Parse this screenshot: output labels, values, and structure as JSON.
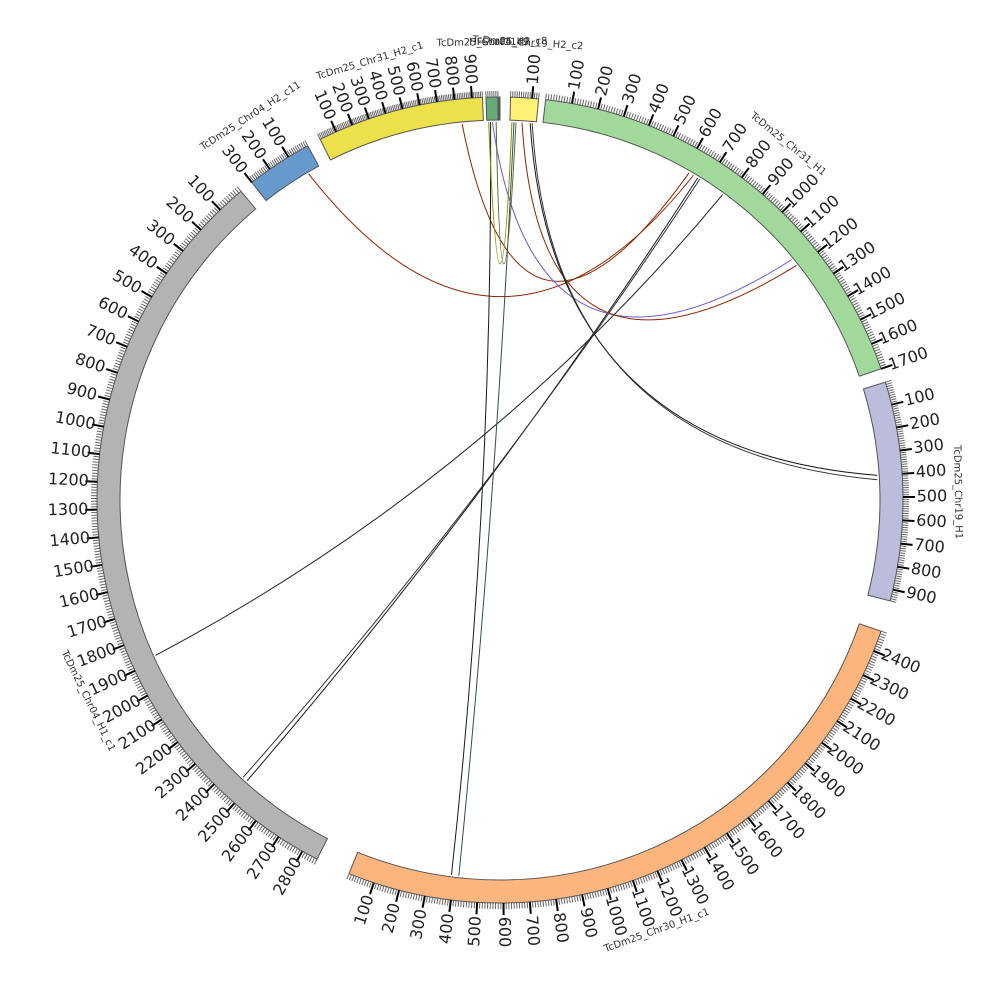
{
  "chromosomes": [
    {
      "name": "TcDm25_Chr19_H1",
      "color": "#bcbddc",
      "max": 950,
      "start_deg": 73.0,
      "end_deg": 104.5,
      "label_deg": 89.0,
      "dir": 1
    },
    {
      "name": "TcDm25_Chr30_H1_c1",
      "color": "#fdb57e",
      "max": 2480,
      "start_deg": 109.0,
      "end_deg": 202.0,
      "label_deg": 160.0,
      "dir": -1
    },
    {
      "name": "TcDm25_Chr04_H1_c1",
      "color": "#b3b3b3",
      "max": 2860,
      "start_deg": 207.0,
      "end_deg": 320.0,
      "label_deg": 244.0,
      "dir": -1
    },
    {
      "name": "TcDm25_Chr04_H2_c11",
      "color": "#6699cc",
      "max": 300,
      "start_deg": 322.0,
      "end_deg": 331.5,
      "label_deg": 327.0,
      "dir": -1
    },
    {
      "name": "TcDm25_Chr31_H2_c1",
      "color": "#ece14b",
      "max": 960,
      "start_deg": 333.5,
      "end_deg": 357.5,
      "label_deg": 343.5,
      "dir": 1
    },
    {
      "name": "TcDm25_Chr04_H2_c8",
      "color": "#66aa77",
      "max": 60,
      "start_deg": 358.0,
      "end_deg": 359.7,
      "label_deg": 359.0,
      "dir": 1
    },
    {
      "name": "HFScaf1149",
      "color": "#aaaaaa",
      "max": 10,
      "start_deg": 359.85,
      "end_deg": 360.0,
      "label_deg": 359.9,
      "dir": 1
    },
    {
      "name": "TcDm25_Chr19_H2_c2",
      "color": "#fff176",
      "max": 130,
      "start_deg": 1.5,
      "end_deg": 5.5,
      "label_deg": 3.5,
      "dir": 1
    },
    {
      "name": "TcDm25_Chr31_H1",
      "color": "#a1d99b",
      "max": 1700,
      "start_deg": 6.5,
      "end_deg": 71.0,
      "label_deg": 39.0,
      "dir": 1
    }
  ],
  "links": [
    {
      "from": "TcDm25_Chr31_H2_c1",
      "from_pos": 830,
      "to": "TcDm25_Chr31_H1",
      "to_pos": 620,
      "color": "#8b2500"
    },
    {
      "from": "TcDm25_Chr04_H2_c11",
      "from_pos": 60,
      "to": "TcDm25_Chr31_H1",
      "to_pos": 640,
      "color": "#8b2500"
    },
    {
      "from": "TcDm25_Chr04_H1_c1",
      "from_pos": 2480,
      "to": "TcDm25_Chr31_H1",
      "to_pos": 660,
      "color": "#1a1a1a"
    },
    {
      "from": "TcDm25_Chr04_H1_c1",
      "from_pos": 2460,
      "to": "TcDm25_Chr31_H1",
      "to_pos": 670,
      "color": "#333333"
    },
    {
      "from": "TcDm25_Chr04_H1_c1",
      "from_pos": 1880,
      "to": "TcDm25_Chr31_H1",
      "to_pos": 780,
      "color": "#222222"
    },
    {
      "from": "TcDm25_Chr04_H2_c8",
      "from_pos": 30,
      "to": "TcDm25_Chr31_H1",
      "to_pos": 1160,
      "color": "#6a5acd"
    },
    {
      "from": "TcDm25_Chr19_H2_c2",
      "from_pos": 60,
      "to": "TcDm25_Chr31_H1",
      "to_pos": 1190,
      "color": "#8b2500"
    },
    {
      "from": "TcDm25_Chr19_H2_c2",
      "from_pos": 100,
      "to": "TcDm25_Chr19_H1",
      "to_pos": 400,
      "color": "#1a1a1a"
    },
    {
      "from": "TcDm25_Chr19_H2_c2",
      "from_pos": 110,
      "to": "TcDm25_Chr19_H1",
      "to_pos": 420,
      "color": "#333333"
    },
    {
      "from": "TcDm25_Chr04_H2_c8",
      "from_pos": 20,
      "to": "TcDm25_Chr30_H1_c1",
      "to_pos": 390,
      "color": "#1a1a1a"
    },
    {
      "from": "TcDm25_Chr19_H2_c2",
      "from_pos": 20,
      "to": "TcDm25_Chr30_H1_c1",
      "to_pos": 420,
      "color": "#2f4f4f"
    },
    {
      "from": "TcDm25_Chr04_H2_c8",
      "from_pos": 10,
      "to": "TcDm25_Chr19_H2_c2",
      "to_pos": 10,
      "color": "#8b8b00"
    },
    {
      "from": "TcDm25_Chr04_H2_c8",
      "from_pos": 50,
      "to": "TcDm25_Chr19_H2_c2",
      "to_pos": 30,
      "color": "#556b2f"
    }
  ]
}
